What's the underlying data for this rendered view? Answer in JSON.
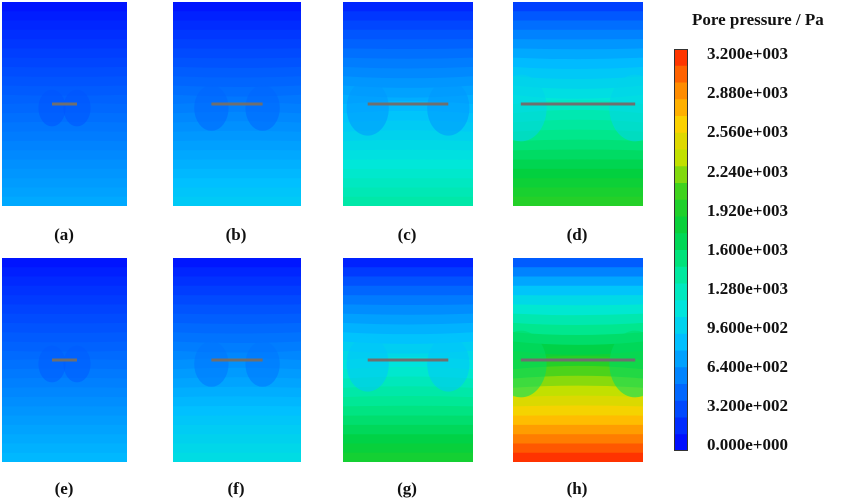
{
  "legend": {
    "title": "Pore pressure / Pa",
    "ticks": [
      "3.200e+003",
      "2.880e+003",
      "2.560e+003",
      "2.240e+003",
      "1.920e+003",
      "1.600e+003",
      "1.280e+003",
      "9.600e+002",
      "6.400e+002",
      "3.200e+002",
      "0.000e+000"
    ],
    "range": [
      0,
      3200
    ]
  },
  "colors": {
    "scale": [
      "#0000ff",
      "#0040ff",
      "#0080ff",
      "#00c0ff",
      "#00e8d8",
      "#00e890",
      "#00d040",
      "#30d020",
      "#c0e000",
      "#ffd000",
      "#ff8000",
      "#ff2000"
    ]
  },
  "panels": [
    {
      "label": "(a)",
      "crack_width": 0.2,
      "top_value": 60,
      "bottom_value": 780
    },
    {
      "label": "(b)",
      "crack_width": 0.4,
      "top_value": 60,
      "bottom_value": 960
    },
    {
      "label": "(c)",
      "crack_width": 0.62,
      "top_value": 120,
      "bottom_value": 1380
    },
    {
      "label": "(d)",
      "crack_width": 0.88,
      "top_value": 220,
      "bottom_value": 2000
    },
    {
      "label": "(e)",
      "crack_width": 0.2,
      "top_value": 60,
      "bottom_value": 850
    },
    {
      "label": "(f)",
      "crack_width": 0.4,
      "top_value": 60,
      "bottom_value": 1100
    },
    {
      "label": "(g)",
      "crack_width": 0.62,
      "top_value": 80,
      "bottom_value": 1900
    },
    {
      "label": "(h)",
      "crack_width": 0.88,
      "top_value": 300,
      "bottom_value": 3200
    }
  ]
}
